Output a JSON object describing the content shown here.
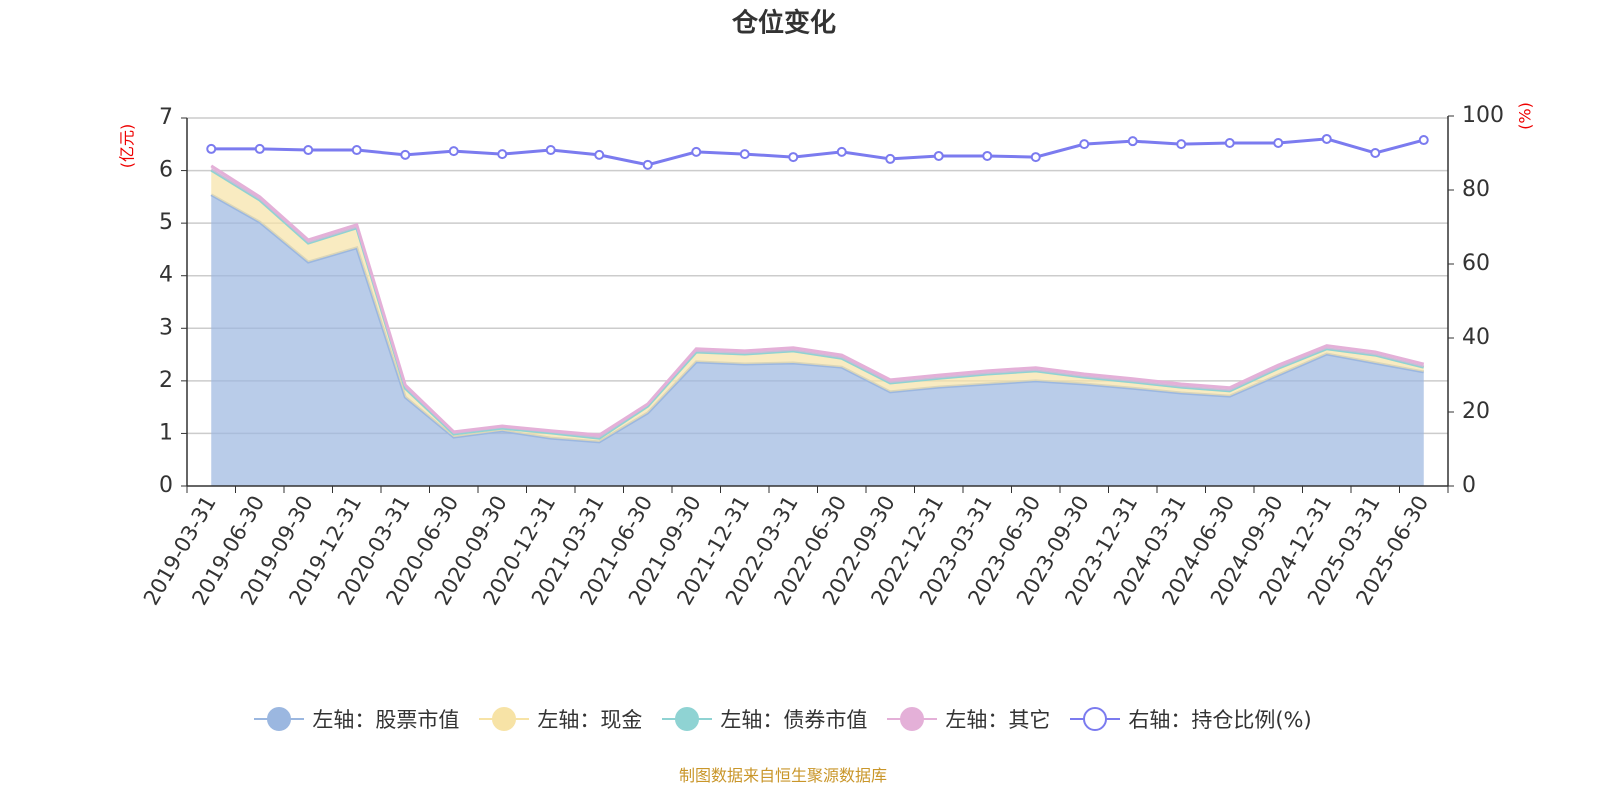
{
  "chart_data": {
    "type": "stacked-area",
    "title": "仓位变化",
    "categories": [
      "2019-03-31",
      "2019-06-30",
      "2019-09-30",
      "2019-12-31",
      "2020-03-31",
      "2020-06-30",
      "2020-09-30",
      "2020-12-31",
      "2021-03-31",
      "2021-06-30",
      "2021-09-30",
      "2021-12-31",
      "2022-03-31",
      "2022-06-30",
      "2022-09-30",
      "2022-12-31",
      "2023-03-31",
      "2023-06-30",
      "2023-09-30",
      "2023-12-31",
      "2024-03-31",
      "2024-06-30",
      "2024-09-30",
      "2024-12-31",
      "2025-03-31",
      "2025-06-30"
    ],
    "series": [
      {
        "name": "左轴：股票市值",
        "color": "#9bb7e0",
        "values": [
          5.54,
          5.02,
          4.26,
          4.53,
          1.69,
          0.93,
          1.05,
          0.91,
          0.84,
          1.39,
          2.36,
          2.32,
          2.34,
          2.26,
          1.79,
          1.88,
          1.94,
          2.0,
          1.94,
          1.86,
          1.77,
          1.71,
          2.11,
          2.51,
          2.34,
          2.17
        ]
      },
      {
        "name": "左轴：现金",
        "color": "#f7e3a6",
        "values": [
          0.47,
          0.42,
          0.36,
          0.38,
          0.17,
          0.06,
          0.05,
          0.1,
          0.07,
          0.13,
          0.19,
          0.19,
          0.23,
          0.17,
          0.17,
          0.17,
          0.19,
          0.19,
          0.13,
          0.12,
          0.11,
          0.1,
          0.13,
          0.1,
          0.15,
          0.09
        ]
      },
      {
        "name": "左轴：债券市值",
        "color": "#8fd3d3",
        "values": [
          0,
          0,
          0,
          0,
          0,
          0,
          0,
          0,
          0,
          0,
          0,
          0,
          0,
          0,
          0,
          0,
          0,
          0,
          0,
          0,
          0,
          0,
          0,
          0,
          0,
          0
        ]
      },
      {
        "name": "左轴：其它",
        "color": "#e4b0d8",
        "values": [
          0.08,
          0.06,
          0.06,
          0.06,
          0.06,
          0.04,
          0.04,
          0.04,
          0.06,
          0.04,
          0.06,
          0.06,
          0.06,
          0.06,
          0.06,
          0.06,
          0.06,
          0.06,
          0.06,
          0.06,
          0.06,
          0.06,
          0.06,
          0.06,
          0.06,
          0.06
        ]
      },
      {
        "name": "右轴：持仓比例(%)",
        "color": "#7b7bef",
        "axis": "y2",
        "values": [
          91.1,
          91.1,
          90.8,
          90.8,
          89.5,
          90.5,
          89.7,
          90.8,
          89.5,
          86.8,
          90.3,
          89.7,
          88.9,
          90.3,
          88.4,
          89.2,
          89.2,
          88.9,
          92.4,
          93.2,
          92.4,
          92.7,
          92.7,
          93.8,
          90.0,
          93.5
        ]
      }
    ],
    "ylim": [
      0,
      7
    ],
    "yticks": [
      0,
      1,
      2,
      3,
      4,
      5,
      6,
      7
    ],
    "y2lim": [
      0,
      100
    ],
    "y2ticks": [
      0,
      20,
      40,
      60,
      80,
      100
    ],
    "y_label": "(亿元)",
    "y2_label": "(%)",
    "grid": true,
    "legend": "bottom",
    "source": "制图数据来自恒生聚源数据库"
  }
}
